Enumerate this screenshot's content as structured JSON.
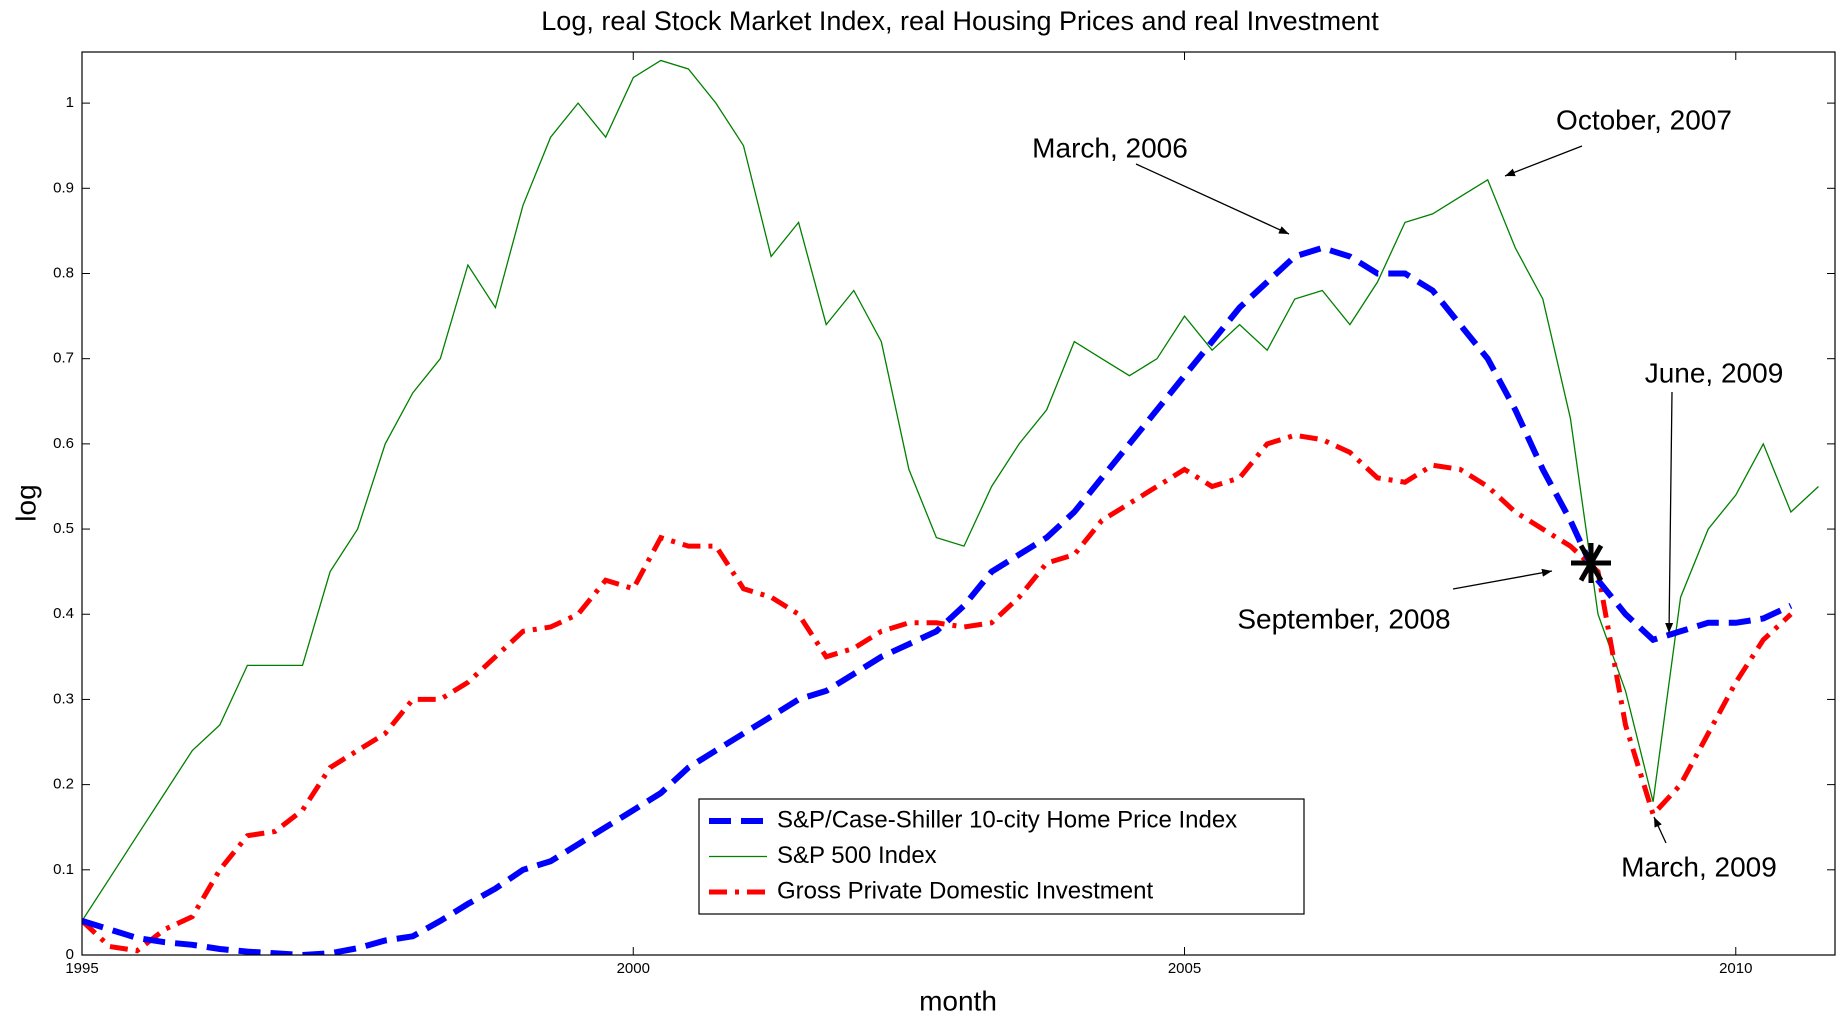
{
  "chart_data": {
    "type": "line",
    "title": "Log, real Stock Market Index, real Housing Prices and real Investment",
    "x_label": "month",
    "y_label": "log",
    "x": [
      1995,
      1995.25,
      1995.5,
      1995.75,
      1996,
      1996.25,
      1996.5,
      1996.75,
      1997,
      1997.25,
      1997.5,
      1997.75,
      1998,
      1998.25,
      1998.5,
      1998.75,
      1999,
      1999.25,
      1999.5,
      1999.75,
      2000,
      2000.25,
      2000.5,
      2000.75,
      2001,
      2001.25,
      2001.5,
      2001.75,
      2002,
      2002.25,
      2002.5,
      2002.75,
      2003,
      2003.25,
      2003.5,
      2003.75,
      2004,
      2004.25,
      2004.5,
      2004.75,
      2005,
      2005.25,
      2005.5,
      2005.75,
      2006,
      2006.25,
      2006.5,
      2006.75,
      2007,
      2007.25,
      2007.5,
      2007.75,
      2008,
      2008.25,
      2008.5,
      2008.75,
      2009,
      2009.25,
      2009.5,
      2009.75,
      2010,
      2010.25,
      2010.5,
      2010.75
    ],
    "series": [
      {
        "name": "S&P/Case-Shiller 10-city Home Price Index",
        "color": "#0000ff",
        "style": "dashed",
        "values": [
          0.04,
          0.03,
          0.02,
          0.015,
          0.012,
          0.007,
          0.004,
          0.002,
          0.0,
          0.002,
          0.008,
          0.017,
          0.022,
          0.04,
          0.06,
          0.078,
          0.1,
          0.11,
          0.13,
          0.15,
          0.17,
          0.19,
          0.22,
          0.24,
          0.26,
          0.28,
          0.3,
          0.31,
          0.33,
          0.35,
          0.365,
          0.38,
          0.41,
          0.45,
          0.47,
          0.49,
          0.52,
          0.56,
          0.6,
          0.64,
          0.68,
          0.72,
          0.76,
          0.79,
          0.82,
          0.83,
          0.82,
          0.8,
          0.8,
          0.78,
          0.74,
          0.7,
          0.64,
          0.57,
          0.51,
          0.44,
          0.4,
          0.37,
          0.38,
          0.39,
          0.39,
          0.395,
          0.41,
          null
        ]
      },
      {
        "name": "S&P 500 Index",
        "color": "#008000",
        "style": "solid",
        "values": [
          0.04,
          0.09,
          0.14,
          0.19,
          0.24,
          0.27,
          0.34,
          0.34,
          0.34,
          0.45,
          0.5,
          0.6,
          0.66,
          0.7,
          0.81,
          0.76,
          0.88,
          0.96,
          1.0,
          0.96,
          1.03,
          1.05,
          1.04,
          1.0,
          0.95,
          0.82,
          0.86,
          0.74,
          0.78,
          0.72,
          0.57,
          0.49,
          0.48,
          0.55,
          0.6,
          0.64,
          0.72,
          0.7,
          0.68,
          0.7,
          0.75,
          0.71,
          0.74,
          0.71,
          0.77,
          0.78,
          0.74,
          0.79,
          0.86,
          0.87,
          0.89,
          0.91,
          0.83,
          0.77,
          0.63,
          0.4,
          0.31,
          0.18,
          0.42,
          0.5,
          0.54,
          0.6,
          0.52,
          0.55
        ]
      },
      {
        "name": "Gross Private Domestic Investment",
        "color": "#ff0000",
        "style": "dashdot",
        "values": [
          0.04,
          0.01,
          0.005,
          0.03,
          0.045,
          0.1,
          0.14,
          0.145,
          0.17,
          0.22,
          0.24,
          0.26,
          0.3,
          0.3,
          0.32,
          0.35,
          0.38,
          0.385,
          0.4,
          0.44,
          0.43,
          0.49,
          0.48,
          0.48,
          0.43,
          0.42,
          0.4,
          0.35,
          0.36,
          0.38,
          0.39,
          0.39,
          0.385,
          0.39,
          0.42,
          0.46,
          0.47,
          0.51,
          0.53,
          0.55,
          0.57,
          0.55,
          0.56,
          0.6,
          0.61,
          0.605,
          0.59,
          0.56,
          0.555,
          0.575,
          0.57,
          0.55,
          0.52,
          0.5,
          0.48,
          0.45,
          0.27,
          0.165,
          0.2,
          0.26,
          0.32,
          0.37,
          0.4,
          null
        ]
      }
    ],
    "xlim": [
      1995,
      2010.9
    ],
    "ylim": [
      0,
      1.06
    ],
    "xticks": [
      1995,
      2000,
      2005,
      2010
    ],
    "yticks": [
      0,
      0.1,
      0.2,
      0.3,
      0.4,
      0.5,
      0.6,
      0.7,
      0.8,
      0.9,
      1
    ],
    "annotations": [
      "March, 2006",
      "October, 2007",
      "June, 2009",
      "September, 2008",
      "March, 2009"
    ],
    "legend": "bottom-center"
  }
}
